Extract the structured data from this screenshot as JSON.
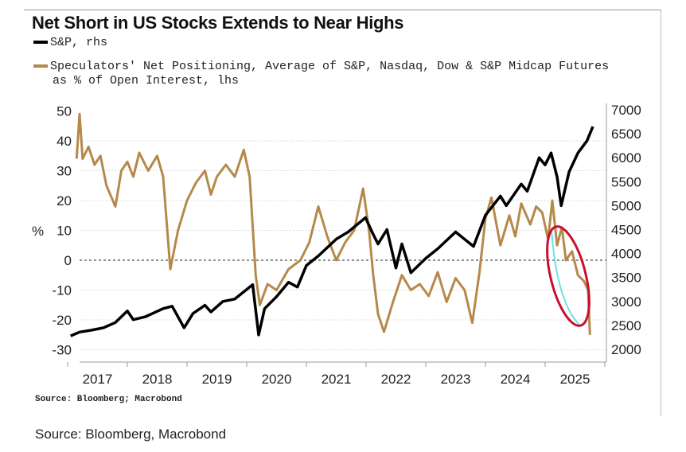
{
  "chart_data": {
    "type": "line",
    "title": "Net Short in US Stocks Extends to Near Highs",
    "legend": [
      {
        "label": "S&P, rhs",
        "color": "#000000"
      },
      {
        "label": "Speculators' Net Positioning, Average of S&P, Nasdaq, Dow & S&P Midcap Futures",
        "label2": "as % of Open Interest, lhs",
        "color": "#b5894a"
      }
    ],
    "ylabel_left": "%",
    "yticks_left": [
      50,
      40,
      30,
      20,
      10,
      0,
      -10,
      -20,
      -30
    ],
    "ylim_left": [
      -33,
      52
    ],
    "yticks_right": [
      7000,
      6500,
      6000,
      5500,
      5000,
      4500,
      4000,
      3500,
      3000,
      2500,
      2000
    ],
    "ylim_right": [
      1900,
      7000
    ],
    "xticks": [
      "2017",
      "2018",
      "2019",
      "2020",
      "2021",
      "2022",
      "2023",
      "2024",
      "2025"
    ],
    "xlim": [
      2016.8,
      2025.95
    ],
    "zero_line": 0,
    "series": [
      {
        "name": "S&P",
        "axis": "right",
        "color": "#000000",
        "points": [
          [
            2017.05,
            2280
          ],
          [
            2017.2,
            2360
          ],
          [
            2017.4,
            2400
          ],
          [
            2017.6,
            2450
          ],
          [
            2017.8,
            2560
          ],
          [
            2018.0,
            2800
          ],
          [
            2018.1,
            2620
          ],
          [
            2018.3,
            2680
          ],
          [
            2018.6,
            2850
          ],
          [
            2018.75,
            2900
          ],
          [
            2018.95,
            2450
          ],
          [
            2019.1,
            2750
          ],
          [
            2019.3,
            2920
          ],
          [
            2019.4,
            2780
          ],
          [
            2019.6,
            3000
          ],
          [
            2019.8,
            3050
          ],
          [
            2020.0,
            3250
          ],
          [
            2020.1,
            3350
          ],
          [
            2020.2,
            2300
          ],
          [
            2020.3,
            2850
          ],
          [
            2020.5,
            3100
          ],
          [
            2020.7,
            3400
          ],
          [
            2020.85,
            3300
          ],
          [
            2021.0,
            3750
          ],
          [
            2021.2,
            3950
          ],
          [
            2021.5,
            4300
          ],
          [
            2021.7,
            4450
          ],
          [
            2021.99,
            4750
          ],
          [
            2022.1,
            4450
          ],
          [
            2022.2,
            4200
          ],
          [
            2022.35,
            4500
          ],
          [
            2022.5,
            3700
          ],
          [
            2022.6,
            4200
          ],
          [
            2022.75,
            3600
          ],
          [
            2023.0,
            3900
          ],
          [
            2023.2,
            4100
          ],
          [
            2023.5,
            4450
          ],
          [
            2023.8,
            4150
          ],
          [
            2024.0,
            4800
          ],
          [
            2024.25,
            5200
          ],
          [
            2024.35,
            5000
          ],
          [
            2024.6,
            5450
          ],
          [
            2024.7,
            5300
          ],
          [
            2024.9,
            6000
          ],
          [
            2025.0,
            5850
          ],
          [
            2025.1,
            6100
          ],
          [
            2025.2,
            5600
          ],
          [
            2025.27,
            5000
          ],
          [
            2025.4,
            5700
          ],
          [
            2025.55,
            6100
          ],
          [
            2025.7,
            6350
          ],
          [
            2025.8,
            6650
          ]
        ]
      },
      {
        "name": "Speculators' Net Positioning",
        "axis": "left",
        "color": "#b5894a",
        "points": [
          [
            2017.15,
            34
          ],
          [
            2017.2,
            49
          ],
          [
            2017.25,
            34
          ],
          [
            2017.35,
            38
          ],
          [
            2017.45,
            32
          ],
          [
            2017.55,
            35
          ],
          [
            2017.65,
            25
          ],
          [
            2017.8,
            18
          ],
          [
            2017.9,
            30
          ],
          [
            2018.0,
            33
          ],
          [
            2018.1,
            28
          ],
          [
            2018.2,
            36
          ],
          [
            2018.35,
            30
          ],
          [
            2018.5,
            35
          ],
          [
            2018.6,
            28
          ],
          [
            2018.72,
            -3
          ],
          [
            2018.85,
            10
          ],
          [
            2019.0,
            20
          ],
          [
            2019.15,
            26
          ],
          [
            2019.3,
            30
          ],
          [
            2019.4,
            22
          ],
          [
            2019.5,
            28
          ],
          [
            2019.65,
            32
          ],
          [
            2019.8,
            28
          ],
          [
            2019.95,
            37
          ],
          [
            2020.05,
            28
          ],
          [
            2020.15,
            -5
          ],
          [
            2020.22,
            -15
          ],
          [
            2020.35,
            -8
          ],
          [
            2020.5,
            -10
          ],
          [
            2020.7,
            -3
          ],
          [
            2020.9,
            0
          ],
          [
            2021.05,
            6
          ],
          [
            2021.2,
            18
          ],
          [
            2021.35,
            8
          ],
          [
            2021.5,
            0
          ],
          [
            2021.65,
            6
          ],
          [
            2021.8,
            10
          ],
          [
            2021.95,
            24
          ],
          [
            2022.05,
            10
          ],
          [
            2022.12,
            -5
          ],
          [
            2022.2,
            -18
          ],
          [
            2022.3,
            -24
          ],
          [
            2022.45,
            -14
          ],
          [
            2022.6,
            -5
          ],
          [
            2022.75,
            -10
          ],
          [
            2022.9,
            -8
          ],
          [
            2023.05,
            -12
          ],
          [
            2023.2,
            -4
          ],
          [
            2023.35,
            -14
          ],
          [
            2023.5,
            -6
          ],
          [
            2023.65,
            -10
          ],
          [
            2023.78,
            -21
          ],
          [
            2023.9,
            -4
          ],
          [
            2024.0,
            14
          ],
          [
            2024.1,
            21
          ],
          [
            2024.25,
            5
          ],
          [
            2024.4,
            15
          ],
          [
            2024.5,
            8
          ],
          [
            2024.6,
            19
          ],
          [
            2024.75,
            12
          ],
          [
            2024.85,
            18
          ],
          [
            2024.95,
            16
          ],
          [
            2025.05,
            7
          ],
          [
            2025.12,
            20
          ],
          [
            2025.2,
            5
          ],
          [
            2025.28,
            11
          ],
          [
            2025.35,
            0
          ],
          [
            2025.45,
            3
          ],
          [
            2025.55,
            -5
          ],
          [
            2025.65,
            -7
          ],
          [
            2025.72,
            -10
          ],
          [
            2025.75,
            -25
          ]
        ]
      }
    ],
    "annotation": "red ellipse highlighting 2025 decline",
    "source_inner": "Source: Bloomberg; Macrobond"
  },
  "source_outer": "Source: Bloomberg, Macrobond"
}
